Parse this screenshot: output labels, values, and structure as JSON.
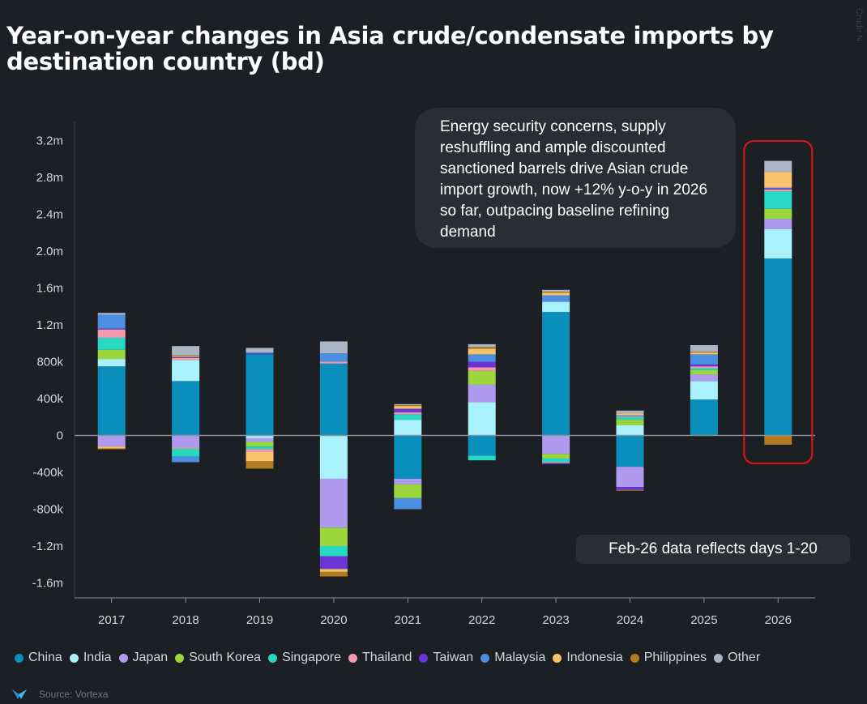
{
  "header": {
    "title": "Year-on-year changes in Asia crude/condensate imports by destination country (bd)",
    "watermark": "Crude N"
  },
  "annotations": {
    "callout": "Energy security concerns, supply reshuffling and ample discounted sanctioned barrels drive Asian crude import growth, now +12% y-o-y in 2026 so far, outpacing baseline refining demand",
    "note": "Feb-26 data reflects days 1-20"
  },
  "source": {
    "label": "Source: Vortexa",
    "logo_icon": "vortexa-logo-icon"
  },
  "chart_data": {
    "type": "bar",
    "stacked": true,
    "title": "Year-on-year changes in Asia crude/condensate imports by destination country (bd)",
    "xlabel": "",
    "ylabel": "",
    "categories": [
      "2017",
      "2018",
      "2019",
      "2020",
      "2021",
      "2022",
      "2023",
      "2024",
      "2025",
      "2026"
    ],
    "yticks": [
      3200000,
      2800000,
      2400000,
      2000000,
      1600000,
      1200000,
      800000,
      400000,
      0,
      -400000,
      -800000,
      -1200000,
      -1600000
    ],
    "ytick_labels": [
      "3.2m",
      "2.8m",
      "2.4m",
      "2.0m",
      "1.6m",
      "1.2m",
      "800k",
      "400k",
      "0",
      "-400k",
      "-800k",
      "-1.2m",
      "-1.6m"
    ],
    "ylim": [
      -1750000,
      3300000
    ],
    "grid": false,
    "legend_position": "bottom",
    "highlight_category": "2026",
    "series": [
      {
        "name": "China",
        "color": "#0a8fbc",
        "values": [
          750000,
          590000,
          880000,
          780000,
          -470000,
          -220000,
          1340000,
          -340000,
          390000,
          1920000
        ]
      },
      {
        "name": "India",
        "color": "#a9f2fb",
        "values": [
          80000,
          230000,
          -30000,
          -470000,
          170000,
          360000,
          110000,
          110000,
          200000,
          320000
        ]
      },
      {
        "name": "Japan",
        "color": "#b09af0",
        "values": [
          -120000,
          -140000,
          -40000,
          -530000,
          -60000,
          190000,
          -200000,
          -220000,
          70000,
          110000
        ]
      },
      {
        "name": "South Korea",
        "color": "#9ad63c",
        "values": [
          100000,
          -10000,
          -50000,
          -200000,
          -150000,
          150000,
          -50000,
          60000,
          50000,
          110000
        ]
      },
      {
        "name": "Singapore",
        "color": "#29d8c2",
        "values": [
          130000,
          -80000,
          -30000,
          -110000,
          60000,
          -50000,
          -40000,
          30000,
          20000,
          190000
        ]
      },
      {
        "name": "Thailand",
        "color": "#f49aac",
        "values": [
          90000,
          20000,
          -30000,
          20000,
          20000,
          40000,
          -10000,
          10000,
          20000,
          20000
        ]
      },
      {
        "name": "Taiwan",
        "color": "#6b35d6",
        "values": [
          10000,
          10000,
          10000,
          -140000,
          40000,
          60000,
          -10000,
          -30000,
          20000,
          10000
        ]
      },
      {
        "name": "Malaysia",
        "color": "#4c8ee0",
        "values": [
          150000,
          -60000,
          10000,
          90000,
          -120000,
          80000,
          70000,
          10000,
          110000,
          10000
        ]
      },
      {
        "name": "Indonesia",
        "color": "#f8c36a",
        "values": [
          -20000,
          10000,
          -100000,
          -30000,
          30000,
          60000,
          30000,
          20000,
          20000,
          170000
        ]
      },
      {
        "name": "Philippines",
        "color": "#b07c1f",
        "values": [
          -10000,
          10000,
          -80000,
          -50000,
          10000,
          20000,
          10000,
          -10000,
          10000,
          -100000
        ]
      },
      {
        "name": "Other",
        "color": "#aab6c6",
        "values": [
          20000,
          100000,
          50000,
          130000,
          10000,
          30000,
          20000,
          30000,
          70000,
          120000
        ]
      }
    ]
  }
}
